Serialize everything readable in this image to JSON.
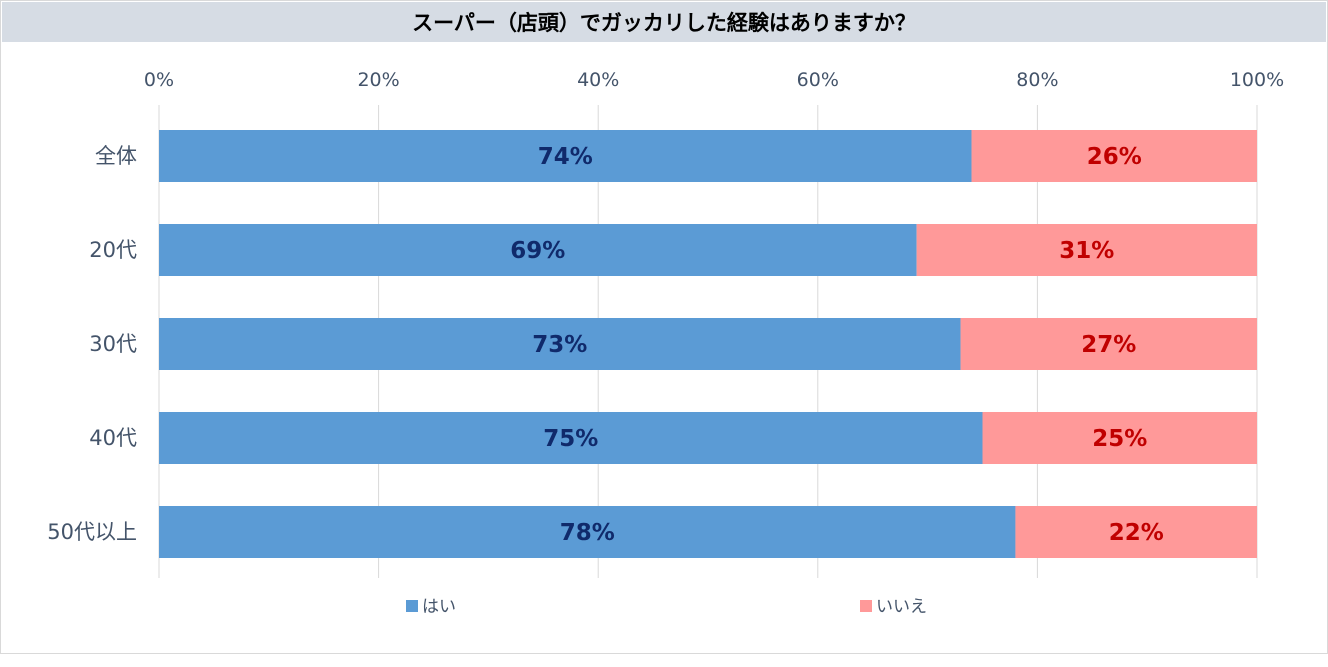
{
  "chart_data": {
    "type": "bar",
    "orientation": "horizontal",
    "stacked": true,
    "title": "スーパー（店頭）でガッカリした経験はありますか？",
    "categories": [
      "全体",
      "20代",
      "30代",
      "40代",
      "50代以上"
    ],
    "series": [
      {
        "name": "はい",
        "values": [
          74,
          69,
          73,
          75,
          78
        ],
        "labels": [
          "74%",
          "69%",
          "73%",
          "75%",
          "78%"
        ],
        "color": "#5b9bd5",
        "label_color": "#102a6b"
      },
      {
        "name": "いいえ",
        "values": [
          26,
          31,
          27,
          25,
          22
        ],
        "labels": [
          "26%",
          "31%",
          "27%",
          "25%",
          "22%"
        ],
        "color": "#ff9999",
        "label_color": "#c00000"
      }
    ],
    "xlim": [
      0,
      100
    ],
    "x_ticks": [
      "0%",
      "20%",
      "40%",
      "60%",
      "80%",
      "100%"
    ],
    "x_axis_position": "top",
    "grid": true,
    "legend_position": "bottom"
  }
}
